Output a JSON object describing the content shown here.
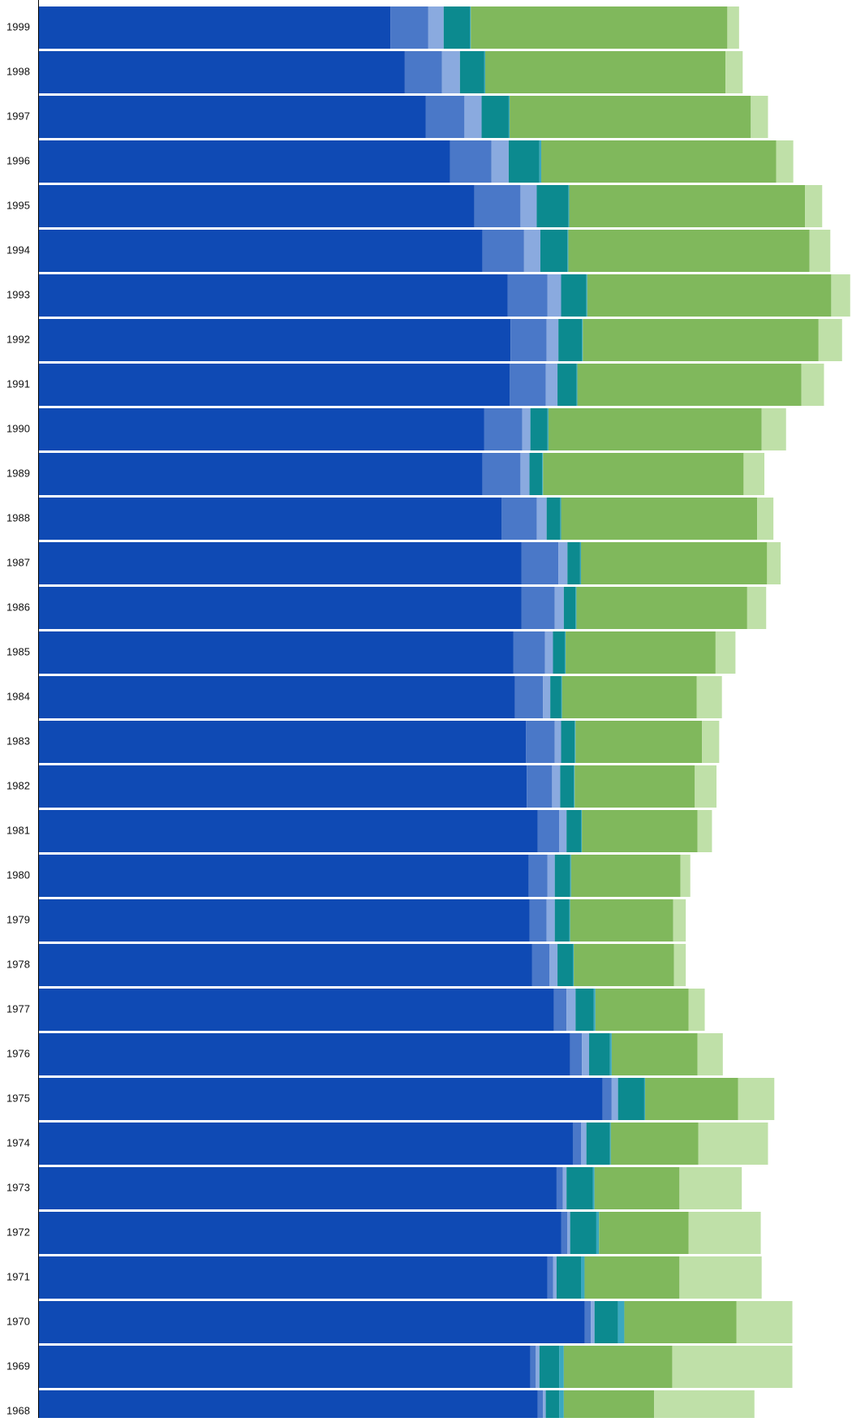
{
  "chart_data": {
    "type": "bar",
    "orientation": "horizontal",
    "stacked": true,
    "categories": [
      "1999",
      "1998",
      "1997",
      "1996",
      "1995",
      "1994",
      "1993",
      "1992",
      "1991",
      "1990",
      "1989",
      "1988",
      "1987",
      "1986",
      "1985",
      "1984",
      "1983",
      "1982",
      "1981",
      "1980",
      "1979",
      "1978",
      "1977",
      "1976",
      "1975",
      "1974",
      "1973",
      "1972",
      "1971",
      "1970",
      "1969",
      "1968"
    ],
    "xlim": [
      0,
      900
    ],
    "series": [
      {
        "color": "#0f4ab4",
        "values": [
          389,
          405,
          428,
          455,
          482,
          491,
          519,
          522,
          521,
          493,
          491,
          512,
          534,
          534,
          525,
          527,
          539,
          540,
          552,
          542,
          543,
          546,
          570,
          588,
          624,
          591,
          573,
          578,
          563,
          604,
          544,
          552
        ]
      },
      {
        "color": "#4a78c8",
        "values": [
          42,
          41,
          43,
          46,
          51,
          46,
          44,
          40,
          40,
          42,
          42,
          39,
          41,
          37,
          35,
          31,
          32,
          28,
          24,
          21,
          19,
          19,
          14,
          13,
          10,
          9,
          7,
          7,
          6,
          7,
          6,
          6
        ]
      },
      {
        "color": "#8aaadf",
        "values": [
          17,
          20,
          19,
          19,
          18,
          18,
          15,
          13,
          13,
          9,
          10,
          11,
          10,
          10,
          9,
          8,
          7,
          9,
          8,
          8,
          9,
          9,
          10,
          8,
          7,
          6,
          4,
          3,
          4,
          4,
          4,
          3
        ]
      },
      {
        "color": "#0c8a8f",
        "values": [
          29,
          27,
          30,
          34,
          35,
          30,
          28,
          26,
          21,
          19,
          14,
          15,
          14,
          13,
          13,
          12,
          15,
          15,
          16,
          17,
          16,
          17,
          20,
          23,
          29,
          26,
          29,
          29,
          27,
          26,
          22,
          15
        ]
      },
      {
        "color": "#3aa8c0",
        "values": [
          1,
          1,
          1,
          2,
          1,
          1,
          1,
          1,
          1,
          1,
          1,
          1,
          1,
          1,
          1,
          1,
          1,
          1,
          1,
          1,
          1,
          1,
          2,
          2,
          1,
          1,
          2,
          3,
          4,
          7,
          5,
          5
        ]
      },
      {
        "color": "#80b85c",
        "values": [
          284,
          266,
          267,
          260,
          261,
          267,
          270,
          261,
          248,
          236,
          222,
          217,
          206,
          189,
          166,
          149,
          140,
          133,
          128,
          121,
          114,
          111,
          103,
          95,
          103,
          97,
          94,
          99,
          105,
          124,
          120,
          100
        ]
      },
      {
        "color": "#bfe0a8",
        "values": [
          13,
          19,
          19,
          19,
          19,
          23,
          21,
          26,
          25,
          27,
          23,
          18,
          15,
          21,
          22,
          28,
          19,
          24,
          16,
          11,
          14,
          13,
          18,
          28,
          40,
          77,
          69,
          80,
          91,
          62,
          133,
          111
        ]
      }
    ]
  }
}
